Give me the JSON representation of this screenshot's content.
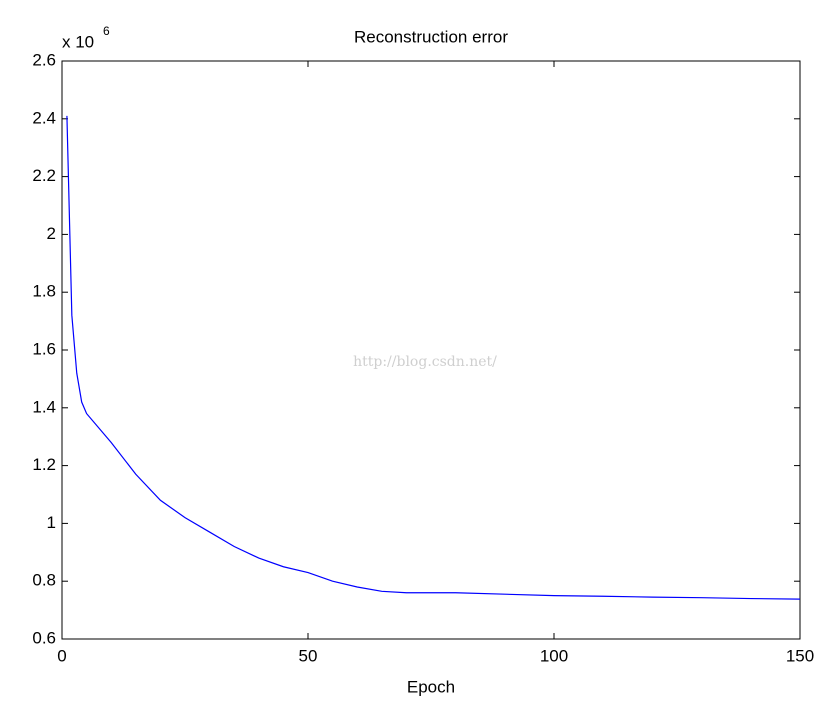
{
  "chart_data": {
    "type": "line",
    "title": "Reconstruction error",
    "xlabel": "Epoch",
    "y_multiplier": "x 10",
    "y_multiplier_exponent": "6",
    "watermark": "http://blog.csdn.net/",
    "x": [
      1,
      2,
      3,
      4,
      5,
      10,
      15,
      20,
      25,
      30,
      35,
      40,
      45,
      50,
      55,
      60,
      65,
      70,
      80,
      90,
      100,
      110,
      120,
      130,
      140,
      150
    ],
    "series": [
      {
        "color": "#0000ff",
        "values": [
          2.41,
          1.72,
          1.52,
          1.42,
          1.38,
          1.28,
          1.17,
          1.08,
          1.02,
          0.97,
          0.92,
          0.88,
          0.85,
          0.83,
          0.8,
          0.78,
          0.765,
          0.76,
          0.76,
          0.755,
          0.75,
          0.748,
          0.745,
          0.743,
          0.74,
          0.738
        ]
      }
    ],
    "xlim": [
      0,
      150
    ],
    "xticks": [
      0,
      50,
      100,
      150
    ],
    "ylim": [
      0.6,
      2.6
    ],
    "yticks": [
      0.6,
      0.8,
      1,
      1.2,
      1.4,
      1.6,
      1.8,
      2,
      2.2,
      2.4,
      2.6
    ]
  }
}
